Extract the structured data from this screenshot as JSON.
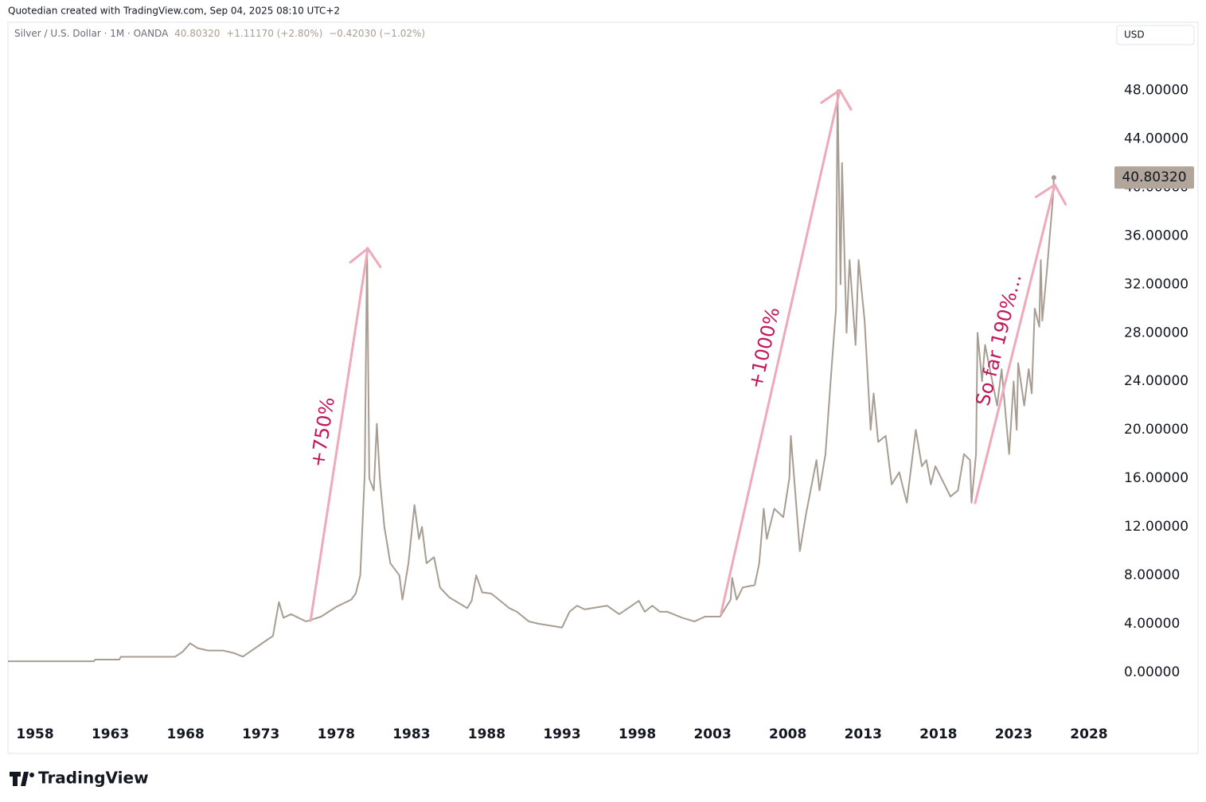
{
  "header": "Quotedian created with TradingView.com, Sep 04, 2025 08:10 UTC+2",
  "brand": "TradingView",
  "chart_data": {
    "type": "line",
    "legend": {
      "symbol": "Silver / U.S. Dollar · 1M · OANDA",
      "last": "40.80320",
      "change1": "+1.11170 (+2.80%)",
      "change2": "−0.42030 (−1.02%)"
    },
    "currency": "USD",
    "x": [
      1956.2,
      1961.9,
      1962.0,
      1963.6,
      1963.7,
      1967.3,
      1967.8,
      1968.3,
      1968.8,
      1969.5,
      1970.5,
      1971.2,
      1971.8,
      1972.5,
      1973.2,
      1973.8,
      1974.2,
      1974.5,
      1975.0,
      1976.0,
      1977.0,
      1978.0,
      1979.0,
      1979.3,
      1979.6,
      1979.9,
      1980.05,
      1980.2,
      1980.5,
      1980.7,
      1980.9,
      1981.2,
      1981.6,
      1982.2,
      1982.4,
      1982.8,
      1983.2,
      1983.5,
      1983.7,
      1984.0,
      1984.5,
      1984.9,
      1985.5,
      1986.3,
      1986.7,
      1987.0,
      1987.3,
      1987.7,
      1988.3,
      1988.8,
      1989.5,
      1990.0,
      1990.8,
      1991.5,
      1992.0,
      1993.0,
      1993.5,
      1994.0,
      1994.5,
      1996.0,
      1996.8,
      1998.1,
      1998.5,
      1999.0,
      1999.5,
      2000.0,
      2001.0,
      2001.8,
      2002.5,
      2003.5,
      2004.2,
      2004.3,
      2004.6,
      2005.0,
      2005.8,
      2006.1,
      2006.4,
      2006.6,
      2007.1,
      2007.7,
      2008.1,
      2008.2,
      2008.8,
      2009.2,
      2009.9,
      2010.1,
      2010.5,
      2010.9,
      2011.2,
      2011.3,
      2011.5,
      2011.6,
      2011.9,
      2012.1,
      2012.5,
      2012.7,
      2013.1,
      2013.5,
      2013.7,
      2014.0,
      2014.5,
      2014.9,
      2015.4,
      2015.9,
      2016.5,
      2016.9,
      2017.2,
      2017.5,
      2017.8,
      2018.8,
      2019.3,
      2019.7,
      2020.1,
      2020.2,
      2020.5,
      2020.6,
      2020.9,
      2021.1,
      2021.9,
      2022.2,
      2022.7,
      2023.0,
      2023.2,
      2023.3,
      2023.7,
      2024.0,
      2024.2,
      2024.4,
      2024.7,
      2024.8,
      2024.9,
      2025.2,
      2025.4,
      2025.6,
      2025.67
    ],
    "series": [
      {
        "name": "Silver / U.S. Dollar",
        "color": "#a89d92",
        "values": [
          0.92,
          0.92,
          1.06,
          1.06,
          1.29,
          1.29,
          1.7,
          2.4,
          2.0,
          1.8,
          1.8,
          1.6,
          1.3,
          1.9,
          2.5,
          3.0,
          5.8,
          4.5,
          4.8,
          4.2,
          4.6,
          5.4,
          6.0,
          6.5,
          8.0,
          16.5,
          35.0,
          16.0,
          15.0,
          20.5,
          16.0,
          12.0,
          9.0,
          8.0,
          6.0,
          9.0,
          13.8,
          11.0,
          12.0,
          9.0,
          9.5,
          7.0,
          6.2,
          5.6,
          5.3,
          5.9,
          8.0,
          6.6,
          6.5,
          6.0,
          5.3,
          5.0,
          4.2,
          4.0,
          3.9,
          3.7,
          5.0,
          5.5,
          5.2,
          5.5,
          4.8,
          5.9,
          5.0,
          5.5,
          5.0,
          5.0,
          4.5,
          4.2,
          4.6,
          4.6,
          6.0,
          7.8,
          6.0,
          7.0,
          7.2,
          9.0,
          13.5,
          11.0,
          13.5,
          12.8,
          16.0,
          19.5,
          10.0,
          13.0,
          17.5,
          15.0,
          18.0,
          25.0,
          30.0,
          48.0,
          32.0,
          42.0,
          28.0,
          34.0,
          27.0,
          34.0,
          29.0,
          20.0,
          23.0,
          19.0,
          19.5,
          15.5,
          16.5,
          14.0,
          20.0,
          17.0,
          17.5,
          15.5,
          17.0,
          14.5,
          15.0,
          18.0,
          17.5,
          14.0,
          18.0,
          28.0,
          24.0,
          27.0,
          22.0,
          25.0,
          18.0,
          24.0,
          20.0,
          25.5,
          22.0,
          25.0,
          23.0,
          30.0,
          28.5,
          34.0,
          29.0,
          33.0,
          36.0,
          39.0,
          40.8032
        ]
      }
    ],
    "xlim": [
      1956.2,
      2029.43
    ],
    "ylim": [
      -3.6,
      51.5
    ],
    "xticks": [
      1958,
      1963,
      1968,
      1973,
      1978,
      1983,
      1988,
      1993,
      1998,
      2003,
      2008,
      2013,
      2018,
      2023,
      2028
    ],
    "yticks": [
      {
        "value": 0,
        "label": "0.00000"
      },
      {
        "value": 4,
        "label": "4.00000"
      },
      {
        "value": 8,
        "label": "8.00000"
      },
      {
        "value": 12,
        "label": "12.00000"
      },
      {
        "value": 16,
        "label": "16.00000"
      },
      {
        "value": 20,
        "label": "20.00000"
      },
      {
        "value": 24,
        "label": "24.00000"
      },
      {
        "value": 28,
        "label": "28.00000"
      },
      {
        "value": 32,
        "label": "32.00000"
      },
      {
        "value": 36,
        "label": "36.00000"
      },
      {
        "value": 40,
        "label": "40.00000"
      },
      {
        "value": 44,
        "label": "44.00000"
      },
      {
        "value": 48,
        "label": "48.00000"
      }
    ],
    "grid": false,
    "annotations": [
      {
        "text": "+750%",
        "x": [
          1976.3,
          1980.1
        ],
        "y": [
          4.26,
          34.95
        ]
      },
      {
        "text": "+1000%",
        "x": [
          2003.57,
          2011.45
        ],
        "y": [
          4.9,
          48.0
        ]
      },
      {
        "text": "So far 190%...",
        "x": [
          2020.44,
          2025.73
        ],
        "y": [
          13.97,
          40.2
        ]
      }
    ]
  }
}
